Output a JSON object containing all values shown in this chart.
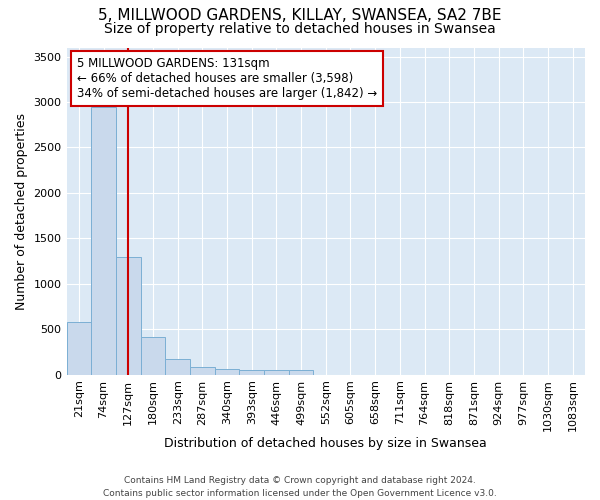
{
  "title": "5, MILLWOOD GARDENS, KILLAY, SWANSEA, SA2 7BE",
  "subtitle": "Size of property relative to detached houses in Swansea",
  "xlabel": "Distribution of detached houses by size in Swansea",
  "ylabel": "Number of detached properties",
  "footer_line1": "Contains HM Land Registry data © Crown copyright and database right 2024.",
  "footer_line2": "Contains public sector information licensed under the Open Government Licence v3.0.",
  "bin_labels": [
    "21sqm",
    "74sqm",
    "127sqm",
    "180sqm",
    "233sqm",
    "287sqm",
    "340sqm",
    "393sqm",
    "446sqm",
    "499sqm",
    "552sqm",
    "605sqm",
    "658sqm",
    "711sqm",
    "764sqm",
    "818sqm",
    "871sqm",
    "924sqm",
    "977sqm",
    "1030sqm",
    "1083sqm"
  ],
  "bar_values": [
    580,
    2950,
    1300,
    420,
    170,
    90,
    60,
    55,
    50,
    50,
    0,
    0,
    0,
    0,
    0,
    0,
    0,
    0,
    0,
    0,
    0
  ],
  "bar_color": "#c9d9ec",
  "bar_edge_color": "#7bafd4",
  "property_line_x": 2,
  "annotation_text": "5 MILLWOOD GARDENS: 131sqm\n← 66% of detached houses are smaller (3,598)\n34% of semi-detached houses are larger (1,842) →",
  "annotation_box_color": "#ffffff",
  "annotation_box_edge": "#cc0000",
  "red_line_color": "#cc0000",
  "ylim": [
    0,
    3600
  ],
  "yticks": [
    0,
    500,
    1000,
    1500,
    2000,
    2500,
    3000,
    3500
  ],
  "fig_bg_color": "#ffffff",
  "plot_bg_color": "#dce9f5",
  "grid_color": "#ffffff",
  "title_fontsize": 11,
  "subtitle_fontsize": 10,
  "axis_label_fontsize": 9,
  "tick_fontsize": 8,
  "footer_fontsize": 6.5
}
